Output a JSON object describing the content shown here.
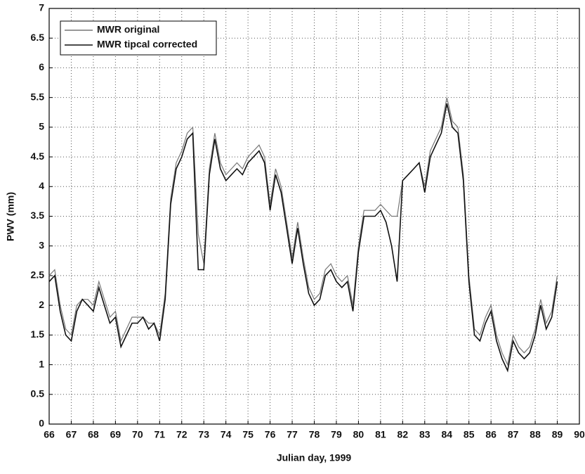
{
  "chart_data": {
    "type": "line",
    "xlabel": "Julian day, 1999",
    "ylabel": "PWV (mm)",
    "x": [
      66,
      66.25,
      66.5,
      66.75,
      67,
      67.25,
      67.5,
      67.75,
      68,
      68.25,
      68.5,
      68.75,
      69,
      69.25,
      69.5,
      69.75,
      70,
      70.25,
      70.5,
      70.75,
      71,
      71.25,
      71.5,
      71.75,
      72,
      72.25,
      72.5,
      72.75,
      73,
      73.25,
      73.5,
      73.75,
      74,
      74.25,
      74.5,
      74.75,
      75,
      75.25,
      75.5,
      75.75,
      76,
      76.25,
      76.5,
      76.75,
      77,
      77.25,
      77.5,
      77.75,
      78,
      78.25,
      78.5,
      78.75,
      79,
      79.25,
      79.5,
      79.75,
      80,
      80.25,
      80.5,
      80.75,
      81,
      81.25,
      81.5,
      81.75,
      82,
      82.25,
      82.5,
      82.75,
      83,
      83.25,
      83.5,
      83.75,
      84,
      84.25,
      84.5,
      84.75,
      85,
      85.25,
      85.5,
      85.75,
      86,
      86.25,
      86.5,
      86.75,
      87,
      87.25,
      87.5,
      87.75,
      88,
      88.25,
      88.5,
      88.75,
      89
    ],
    "series": [
      {
        "name": "MWR original",
        "color": "#777777",
        "values": [
          2.5,
          2.6,
          2.0,
          1.6,
          1.5,
          2.0,
          2.1,
          2.1,
          2.0,
          2.4,
          2.1,
          1.8,
          1.9,
          1.4,
          1.6,
          1.8,
          1.8,
          1.8,
          1.7,
          1.7,
          1.5,
          2.2,
          3.8,
          4.4,
          4.6,
          4.9,
          5.0,
          3.2,
          2.7,
          4.3,
          4.9,
          4.4,
          4.2,
          4.3,
          4.4,
          4.3,
          4.5,
          4.6,
          4.7,
          4.5,
          3.7,
          4.3,
          4.0,
          3.4,
          2.8,
          3.4,
          2.8,
          2.3,
          2.1,
          2.2,
          2.6,
          2.7,
          2.5,
          2.4,
          2.5,
          2.0,
          3.0,
          3.6,
          3.6,
          3.6,
          3.7,
          3.6,
          3.5,
          3.5,
          4.1,
          4.2,
          4.3,
          4.4,
          4.0,
          4.6,
          4.8,
          5.0,
          5.5,
          5.1,
          5.0,
          4.2,
          2.5,
          1.6,
          1.5,
          1.8,
          2.0,
          1.5,
          1.2,
          1.0,
          1.5,
          1.3,
          1.2,
          1.3,
          1.6,
          2.1,
          1.7,
          1.9,
          2.5
        ]
      },
      {
        "name": "MWR tipcal corrected",
        "color": "#111111",
        "values": [
          2.4,
          2.5,
          1.9,
          1.5,
          1.4,
          1.9,
          2.1,
          2.0,
          1.9,
          2.3,
          2.0,
          1.7,
          1.8,
          1.3,
          1.5,
          1.7,
          1.7,
          1.8,
          1.6,
          1.7,
          1.4,
          2.1,
          3.7,
          4.3,
          4.5,
          4.8,
          4.9,
          2.6,
          2.6,
          4.2,
          4.8,
          4.3,
          4.1,
          4.2,
          4.3,
          4.2,
          4.4,
          4.5,
          4.6,
          4.4,
          3.6,
          4.2,
          3.9,
          3.3,
          2.7,
          3.3,
          2.7,
          2.2,
          2.0,
          2.1,
          2.5,
          2.6,
          2.4,
          2.3,
          2.4,
          1.9,
          2.9,
          3.5,
          3.5,
          3.5,
          3.6,
          3.4,
          3.0,
          2.4,
          4.1,
          4.2,
          4.3,
          4.4,
          3.9,
          4.5,
          4.7,
          4.9,
          5.4,
          5.0,
          4.9,
          4.1,
          2.4,
          1.5,
          1.4,
          1.7,
          1.9,
          1.4,
          1.1,
          0.9,
          1.4,
          1.2,
          1.1,
          1.2,
          1.5,
          2.0,
          1.6,
          1.8,
          2.4
        ]
      }
    ],
    "xlim": [
      66,
      90
    ],
    "xticks": [
      66,
      67,
      68,
      69,
      70,
      71,
      72,
      73,
      74,
      75,
      76,
      77,
      78,
      79,
      80,
      81,
      82,
      83,
      84,
      85,
      86,
      87,
      88,
      89,
      90
    ],
    "ylim": [
      0,
      7
    ],
    "yticks": [
      0,
      0.5,
      1,
      1.5,
      2,
      2.5,
      3,
      3.5,
      4,
      4.5,
      5,
      5.5,
      6,
      6.5,
      7
    ],
    "grid": true,
    "legend": "upper-left"
  }
}
